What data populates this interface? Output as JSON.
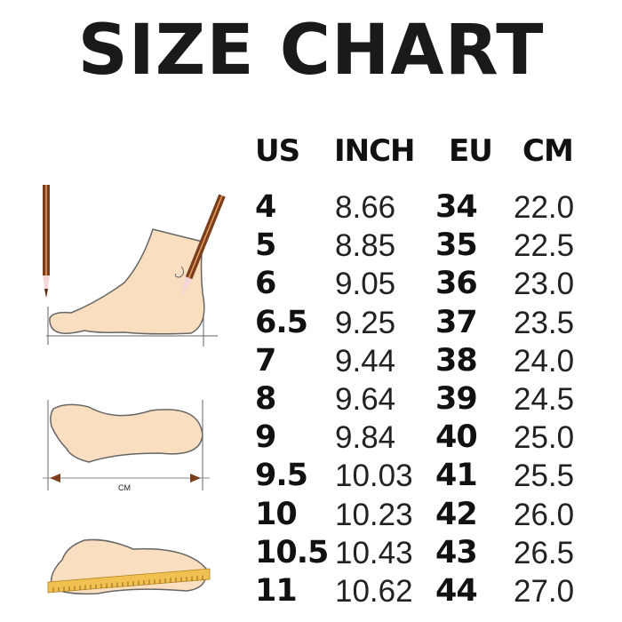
{
  "title": "SIZE CHART",
  "headers": {
    "us": "US",
    "inch": "INCH",
    "eu": "EU",
    "cm": "CM"
  },
  "rows": [
    {
      "us": "4",
      "inch": "8.66",
      "eu": "34",
      "cm": "22.0"
    },
    {
      "us": "5",
      "inch": "8.85",
      "eu": "35",
      "cm": "22.5"
    },
    {
      "us": "6",
      "inch": "9.05",
      "eu": "36",
      "cm": "23.0"
    },
    {
      "us": "6.5",
      "inch": "9.25",
      "eu": "37",
      "cm": "23.5"
    },
    {
      "us": "7",
      "inch": "9.44",
      "eu": "38",
      "cm": "24.0"
    },
    {
      "us": "8",
      "inch": "9.64",
      "eu": "39",
      "cm": "24.5"
    },
    {
      "us": "9",
      "inch": "9.84",
      "eu": "40",
      "cm": "25.0"
    },
    {
      "us": "9.5",
      "inch": "10.03",
      "eu": "41",
      "cm": "25.5"
    },
    {
      "us": "10",
      "inch": "10.23",
      "eu": "42",
      "cm": "26.0"
    },
    {
      "us": "10.5",
      "inch": "10.43",
      "eu": "43",
      "cm": "26.5"
    },
    {
      "us": "11",
      "inch": "10.62",
      "eu": "44",
      "cm": "27.0"
    }
  ],
  "illustration": {
    "measure_label": "CM",
    "skin_color": "#f9dfbf",
    "pencil_color": "#7a3e1c",
    "ruler_color": "#f0c050"
  }
}
